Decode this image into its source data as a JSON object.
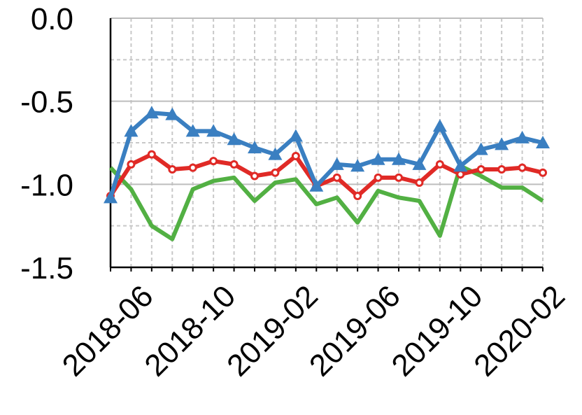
{
  "chart_data": {
    "type": "line",
    "categories": [
      null,
      "2018-06",
      null,
      null,
      null,
      "2018-10",
      null,
      null,
      null,
      "2019-02",
      null,
      null,
      null,
      "2019-06",
      null,
      null,
      null,
      "2019-10",
      null,
      null,
      null,
      "2020-02"
    ],
    "series": [
      {
        "color": "#3a7fc1",
        "marker": "triangle",
        "values": [
          -1.08,
          -0.68,
          -0.57,
          -0.58,
          -0.68,
          -0.68,
          -0.73,
          -0.78,
          -0.82,
          -0.71,
          -1.01,
          -0.88,
          -0.89,
          -0.85,
          -0.85,
          -0.88,
          -0.65,
          -0.89,
          -0.79,
          -0.76,
          -0.72,
          -0.75
        ]
      },
      {
        "color": "#e02a26",
        "marker": "circle",
        "values": [
          -1.07,
          -0.88,
          -0.82,
          -0.91,
          -0.9,
          -0.86,
          -0.88,
          -0.95,
          -0.93,
          -0.83,
          -1.01,
          -0.96,
          -1.07,
          -0.96,
          -0.96,
          -0.99,
          -0.88,
          -0.94,
          -0.91,
          -0.91,
          -0.9,
          -0.93
        ]
      },
      {
        "color": "#52b043",
        "marker": "none",
        "values": [
          -0.9,
          -1.03,
          -1.25,
          -1.33,
          -1.03,
          -0.98,
          -0.96,
          -1.1,
          -0.99,
          -0.97,
          -1.12,
          -1.08,
          -1.23,
          -1.04,
          -1.08,
          -1.1,
          -1.31,
          -0.89,
          -0.95,
          -1.02,
          -1.02,
          -1.1
        ]
      }
    ],
    "ylim": [
      -1.5,
      0
    ],
    "yticks": [
      {
        "value": 0,
        "label": "0.0"
      },
      -0.5,
      {
        "value": -1,
        "label": "-1.0"
      },
      -1.5
    ],
    "minor_yticks": [
      -0.25,
      -0.75,
      -1.25
    ],
    "grid": true
  }
}
